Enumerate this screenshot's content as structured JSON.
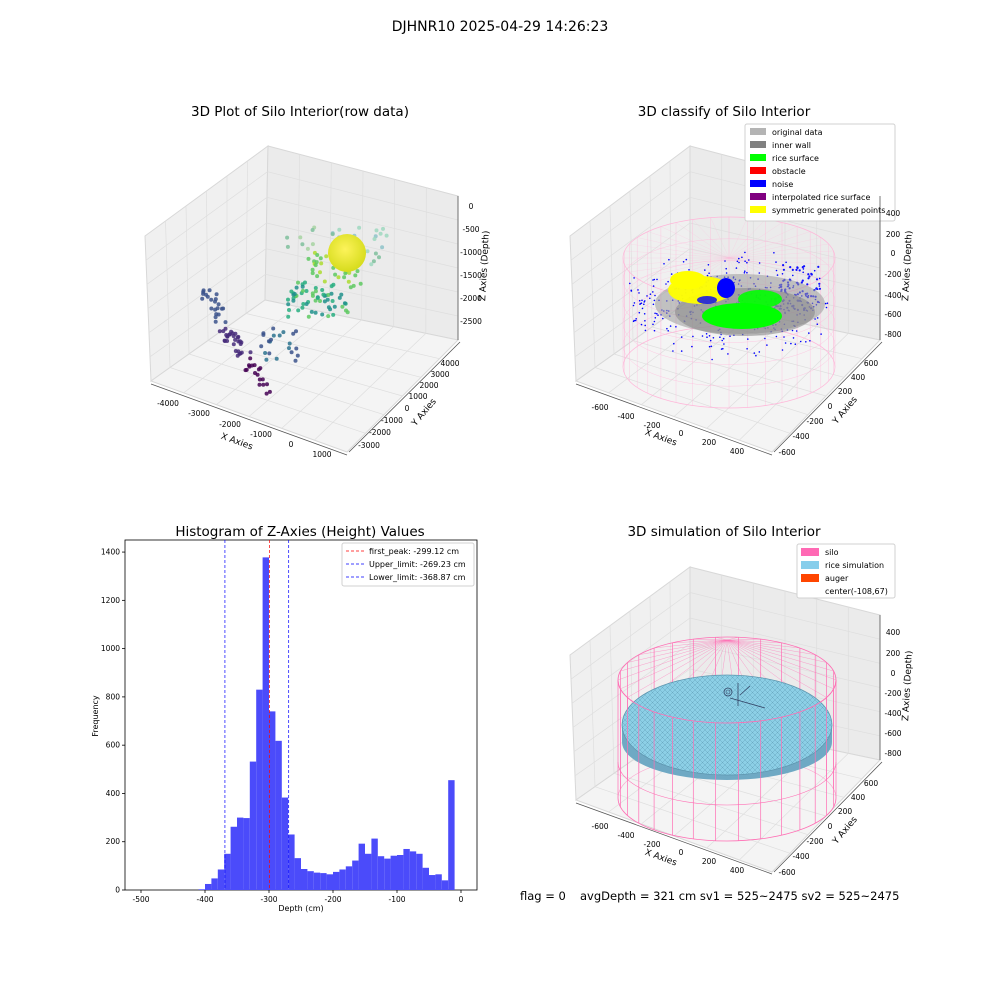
{
  "suptitle": "DJHNR10 2025-04-29 14:26:23",
  "footer": {
    "flag": "flag = 0",
    "stats": "avgDepth = 321 cm  sv1 = 525~2475  sv2 = 525~2475"
  },
  "chart_data": [
    {
      "type": "scatter",
      "subtype": "3d",
      "title": "3D Plot of Silo Interior(row data)",
      "xlabel": "X Axies",
      "ylabel": "Y Axies",
      "zlabel": "Z Axies (Depth)",
      "xticks": [
        "-4000",
        "-3000",
        "-2000",
        "-1000",
        "0",
        "1000"
      ],
      "yticks": [
        "4000",
        "3000",
        "2000",
        "1000",
        "0",
        "-1000",
        "-2000",
        "-3000"
      ],
      "zticks": [
        "0",
        "-500",
        "-1000",
        "-1500",
        "-2000",
        "-2500"
      ],
      "colormap": "viridis",
      "grid": true
    },
    {
      "type": "scatter",
      "subtype": "3d",
      "title": "3D classify of Silo Interior",
      "xlabel": "X Axies",
      "ylabel": "Y Axies",
      "zlabel": "Z Axies (Depth)",
      "xticks": [
        "-600",
        "-400",
        "-200",
        "0",
        "200",
        "400"
      ],
      "yticks": [
        "600",
        "400",
        "200",
        "0",
        "-200",
        "-400",
        "-600"
      ],
      "zticks": [
        "400",
        "200",
        "0",
        "-200",
        "-400",
        "-600",
        "-800"
      ],
      "legend_position": "top-right",
      "legend": [
        {
          "label": "original data",
          "color": "#b4b4b4"
        },
        {
          "label": "inner wall",
          "color": "#808080"
        },
        {
          "label": "rice surface",
          "color": "#00ff00"
        },
        {
          "label": "obstacle",
          "color": "#ff0000"
        },
        {
          "label": "noise",
          "color": "#0000ff"
        },
        {
          "label": "interpolated rice surface",
          "color": "#800080"
        },
        {
          "label": "symmetric generated points",
          "color": "#ffff00"
        }
      ],
      "grid": true
    },
    {
      "type": "bar",
      "subtype": "histogram",
      "title": "Histogram of Z-Axies (Height) Values",
      "xlabel": "Depth (cm)",
      "ylabel": "Frequency",
      "xlim": [
        -525,
        25
      ],
      "ylim": [
        0,
        1450
      ],
      "xticks": [
        -500,
        -400,
        -300,
        -200,
        -100,
        0
      ],
      "yticks": [
        0,
        200,
        400,
        600,
        800,
        1000,
        1200,
        1400
      ],
      "bar_color": "#4b4bfa",
      "bin_start": -410,
      "bin_width": 10,
      "values": [
        3,
        25,
        48,
        85,
        150,
        262,
        300,
        298,
        532,
        830,
        1378,
        740,
        618,
        383,
        230,
        132,
        87,
        78,
        72,
        70,
        65,
        75,
        85,
        98,
        122,
        192,
        150,
        213,
        140,
        130,
        142,
        145,
        170,
        160,
        150,
        92,
        62,
        65,
        40,
        455
      ],
      "vlines": [
        {
          "label": "first_peak: -299.12 cm",
          "x": -299.12,
          "color": "#ff0000"
        },
        {
          "label": "Upper_limit: -269.23 cm",
          "x": -269.23,
          "color": "#0000ff"
        },
        {
          "label": "Lower_limit: -368.87 cm",
          "x": -368.87,
          "color": "#0000ff"
        }
      ],
      "legend_position": "top-right",
      "grid": false
    },
    {
      "type": "scatter",
      "subtype": "3d-surface",
      "title": "3D simulation of Silo Interior",
      "xlabel": "X Axies",
      "ylabel": "Y Axies",
      "zlabel": "Z Axies (Depth)",
      "xticks": [
        "-600",
        "-400",
        "-200",
        "0",
        "200",
        "400"
      ],
      "yticks": [
        "600",
        "400",
        "200",
        "0",
        "-200",
        "-400",
        "-600"
      ],
      "zticks": [
        "400",
        "200",
        "0",
        "-200",
        "-400",
        "-600",
        "-800"
      ],
      "legend_position": "top-right",
      "legend": [
        {
          "label": "silo",
          "color": "#ff69b4"
        },
        {
          "label": "rice simulation",
          "color": "#87ceeb"
        },
        {
          "label": "auger",
          "color": "#ff4500"
        },
        {
          "label": "center(-108,67)",
          "color": ""
        }
      ],
      "grid": true
    }
  ]
}
